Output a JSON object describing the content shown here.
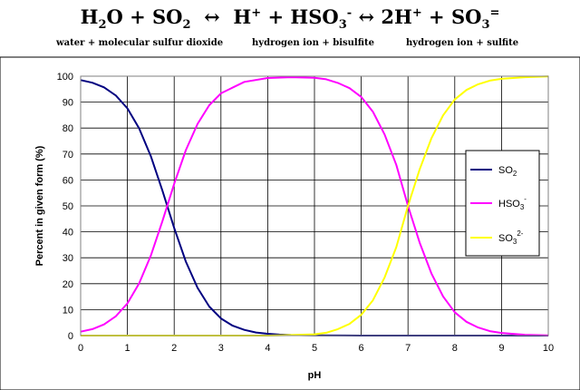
{
  "equation": {
    "term1_h2o": "H",
    "term1_h2o_sub": "2",
    "term1_h2o_o": "O",
    "plus1": "+",
    "term1_so2": "SO",
    "term1_so2_sub": "2",
    "arrow1": "↔",
    "term2_h": "H",
    "term2_h_sup": "+",
    "plus2": "+",
    "term2_hso3": "HSO",
    "term2_hso3_sub": "3",
    "term2_hso3_sup": "-",
    "arrow2": "↔",
    "term3_2h": "2H",
    "term3_2h_sup": "+",
    "plus3": "+",
    "term3_so3": "SO",
    "term3_so3_sub": "3",
    "term3_so3_sup": "="
  },
  "sublabels": {
    "left": "water + molecular sulfur dioxide",
    "middle": "hydrogen ion + bisulfite",
    "right": "hydrogen ion + sulfite"
  },
  "chart_data": {
    "type": "line",
    "title": "",
    "xlabel": "pH",
    "ylabel": "Percent in given form (%)",
    "xlim": [
      0,
      10
    ],
    "ylim": [
      0,
      100
    ],
    "xticks": [
      0,
      1,
      2,
      3,
      4,
      5,
      6,
      7,
      8,
      9,
      10
    ],
    "yticks": [
      0,
      10,
      20,
      30,
      40,
      50,
      60,
      70,
      80,
      90,
      100
    ],
    "grid": true,
    "legend_position": "right",
    "series": [
      {
        "name": "SO2",
        "label_main": "SO",
        "label_sub": "2",
        "label_sup": "",
        "color": "#000080",
        "x": [
          0,
          0.25,
          0.5,
          0.75,
          1,
          1.25,
          1.5,
          1.75,
          2,
          2.25,
          2.5,
          2.75,
          3,
          3.25,
          3.5,
          3.75,
          4,
          4.25,
          4.5,
          5,
          6,
          7,
          8,
          9,
          10
        ],
        "y": [
          98.5,
          97.5,
          95.7,
          92.6,
          87.6,
          79.9,
          69.2,
          55.8,
          41.5,
          28.5,
          18.4,
          11.2,
          6.6,
          3.8,
          2.2,
          1.2,
          0.7,
          0.4,
          0.2,
          0.1,
          0,
          0,
          0,
          0,
          0
        ]
      },
      {
        "name": "HSO3-",
        "label_main": "HSO",
        "label_sub": "3",
        "label_sup": "-",
        "color": "#ff00ff",
        "x": [
          0,
          0.25,
          0.5,
          0.75,
          1,
          1.25,
          1.5,
          1.75,
          2,
          2.25,
          2.5,
          2.75,
          3,
          3.5,
          4,
          4.5,
          5,
          5.25,
          5.5,
          5.75,
          6,
          6.25,
          6.5,
          6.75,
          7,
          7.25,
          7.5,
          7.75,
          8,
          8.25,
          8.5,
          8.75,
          9,
          9.5,
          10
        ],
        "y": [
          1.5,
          2.5,
          4.3,
          7.4,
          12.4,
          20.1,
          30.8,
          44.2,
          58.5,
          71.5,
          81.6,
          88.8,
          93.4,
          97.8,
          99.3,
          99.6,
          99.4,
          98.8,
          97.4,
          95.4,
          92.0,
          86.3,
          77.5,
          65.8,
          50.0,
          35.8,
          24.0,
          15.1,
          9.0,
          5.3,
          3.1,
          1.7,
          1.0,
          0.3,
          0.1
        ]
      },
      {
        "name": "SO3 2-",
        "label_main": "SO",
        "label_sub": "3",
        "label_sup": "2-",
        "color": "#ffff00",
        "x": [
          0,
          1,
          2,
          3,
          4,
          4.5,
          5,
          5.25,
          5.5,
          5.75,
          6,
          6.25,
          6.5,
          6.75,
          7,
          7.25,
          7.5,
          7.75,
          8,
          8.25,
          8.5,
          8.75,
          9,
          9.5,
          10
        ],
        "y": [
          0,
          0,
          0,
          0,
          0,
          0.2,
          0.5,
          1.1,
          2.5,
          4.5,
          8.0,
          13.6,
          22.4,
          34.1,
          50.0,
          64.1,
          76.0,
          84.9,
          91.0,
          94.7,
          96.9,
          98.3,
          99.0,
          99.6,
          99.9
        ]
      }
    ]
  }
}
